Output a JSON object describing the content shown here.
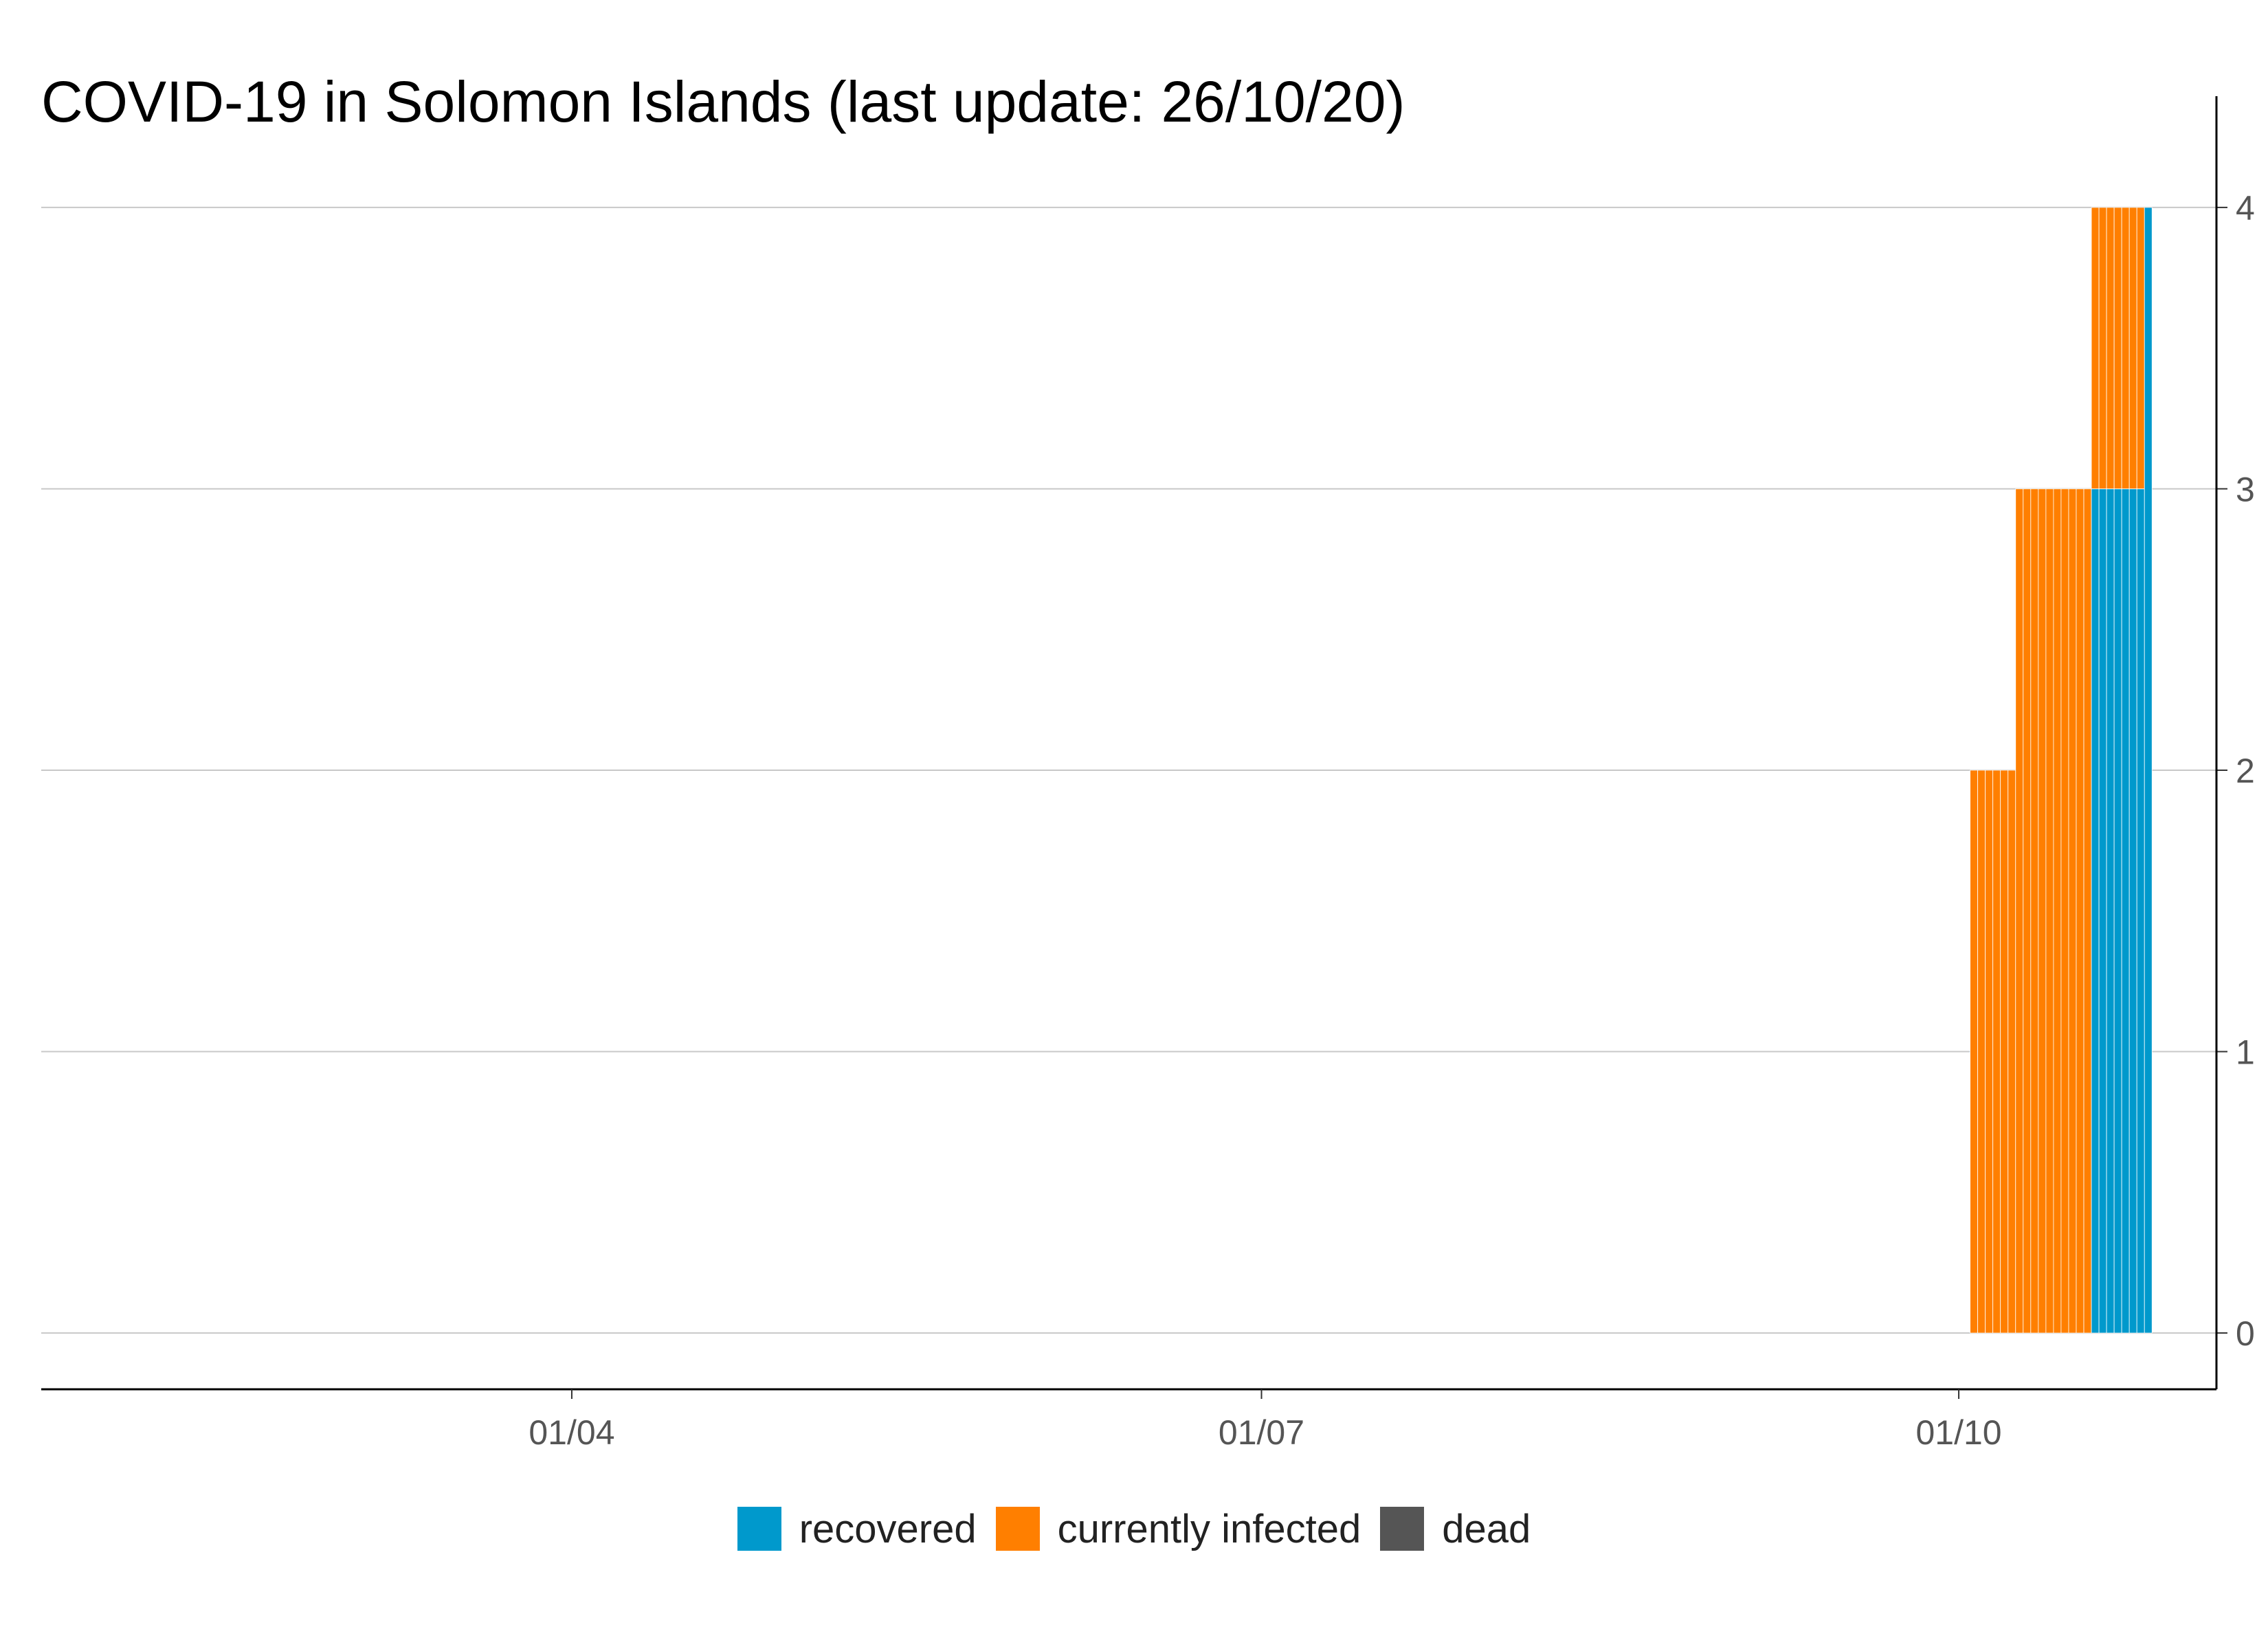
{
  "chart_data": {
    "type": "bar",
    "stacked": true,
    "title": "COVID-19 in Solomon Islands (last update: 26/10/20)",
    "xlabel": "",
    "ylabel": "",
    "x_axis": {
      "start_date": "2020-01-22",
      "end_date": "2020-11-04",
      "tick_dates": [
        "2020-04-01",
        "2020-07-01",
        "2020-10-01"
      ],
      "tick_labels": [
        "01/04",
        "01/07",
        "01/10"
      ]
    },
    "y_axis": {
      "position": "right",
      "ylim": [
        -0.2,
        4.2
      ],
      "ticks": [
        0,
        1,
        2,
        3,
        4
      ]
    },
    "grid": "horizontal",
    "legend_position": "bottom",
    "dates": [
      "2020-10-03",
      "2020-10-04",
      "2020-10-05",
      "2020-10-06",
      "2020-10-07",
      "2020-10-08",
      "2020-10-09",
      "2020-10-10",
      "2020-10-11",
      "2020-10-12",
      "2020-10-13",
      "2020-10-14",
      "2020-10-15",
      "2020-10-16",
      "2020-10-17",
      "2020-10-18",
      "2020-10-19",
      "2020-10-20",
      "2020-10-21",
      "2020-10-22",
      "2020-10-23",
      "2020-10-24",
      "2020-10-25",
      "2020-10-26"
    ],
    "series": [
      {
        "name": "recovered",
        "color": "#0099CC",
        "values": [
          0,
          0,
          0,
          0,
          0,
          0,
          0,
          0,
          0,
          0,
          0,
          0,
          0,
          0,
          0,
          0,
          3,
          3,
          3,
          3,
          3,
          3,
          3,
          4
        ]
      },
      {
        "name": "currently infected",
        "color": "#FF7F00",
        "values": [
          2,
          2,
          2,
          2,
          2,
          2,
          3,
          3,
          3,
          3,
          3,
          3,
          3,
          3,
          3,
          3,
          1,
          1,
          1,
          1,
          1,
          1,
          1,
          0
        ]
      },
      {
        "name": "dead",
        "color": "#555555",
        "values": [
          0,
          0,
          0,
          0,
          0,
          0,
          0,
          0,
          0,
          0,
          0,
          0,
          0,
          0,
          0,
          0,
          0,
          0,
          0,
          0,
          0,
          0,
          0,
          0
        ]
      }
    ]
  }
}
